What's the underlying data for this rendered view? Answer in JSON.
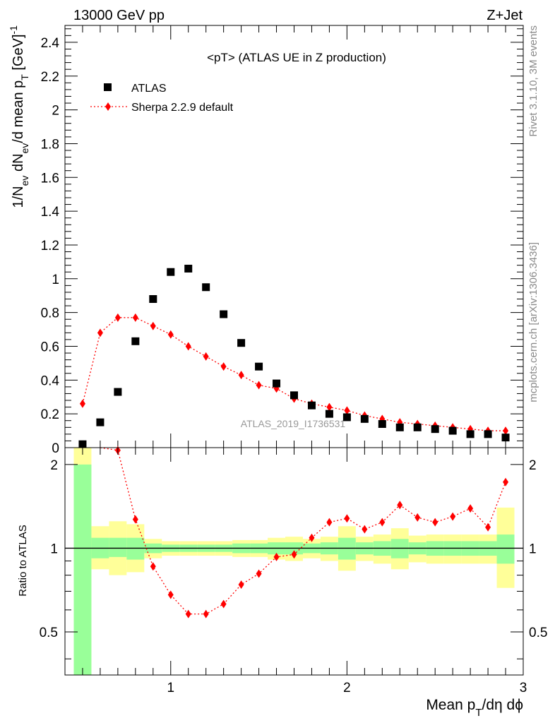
{
  "header": {
    "left": "13000 GeV pp",
    "right": "Z+Jet"
  },
  "side_labels": {
    "rivet": "Rivet 3.1.10,  3M events",
    "mcplots": "mcplots.cern.ch [arXiv:1306.3436]"
  },
  "colors": {
    "data": "#000000",
    "mc": "#ff0000",
    "band_inner": "#99ff99",
    "band_outer": "#ffff99"
  },
  "chart_data": [
    {
      "type": "scatter",
      "title": "<pT> (ATLAS UE in Z production)",
      "xlabel": "",
      "ylabel": "1/N_ev dN_ev/d mean p_T [GeV]^-1",
      "xlim": [
        0.4,
        3.0
      ],
      "ylim": [
        0,
        2.5
      ],
      "yticks": [
        0,
        0.2,
        0.4,
        0.6,
        0.8,
        1,
        1.2,
        1.4,
        1.6,
        1.8,
        2,
        2.2,
        2.4
      ],
      "ytick_labels": [
        "0",
        "0.2",
        "0.4",
        "0.6",
        "0.8",
        "1",
        "1.2",
        "1.4",
        "1.6",
        "1.8",
        "2",
        "2.2",
        "2.4"
      ],
      "watermark": "ATLAS_2019_I1736531",
      "legend_position": "top-left",
      "series": [
        {
          "name": "ATLAS",
          "marker": "square",
          "x": [
            0.5,
            0.6,
            0.7,
            0.8,
            0.9,
            1.0,
            1.1,
            1.2,
            1.3,
            1.4,
            1.5,
            1.6,
            1.7,
            1.8,
            1.9,
            2.0,
            2.1,
            2.2,
            2.3,
            2.4,
            2.5,
            2.6,
            2.7,
            2.8,
            2.9
          ],
          "y": [
            0.02,
            0.15,
            0.33,
            0.63,
            0.88,
            1.04,
            1.06,
            0.95,
            0.79,
            0.62,
            0.48,
            0.38,
            0.31,
            0.25,
            0.2,
            0.18,
            0.17,
            0.14,
            0.12,
            0.12,
            0.11,
            0.1,
            0.08,
            0.08,
            0.06
          ]
        },
        {
          "name": "Sherpa 2.2.9 default",
          "marker": "diamond",
          "line": "dotted",
          "x": [
            0.5,
            0.6,
            0.7,
            0.8,
            0.9,
            1.0,
            1.1,
            1.2,
            1.3,
            1.4,
            1.5,
            1.6,
            1.7,
            1.8,
            1.9,
            2.0,
            2.1,
            2.2,
            2.3,
            2.4,
            2.5,
            2.6,
            2.7,
            2.8,
            2.9
          ],
          "y": [
            0.26,
            0.68,
            0.77,
            0.77,
            0.72,
            0.67,
            0.6,
            0.54,
            0.48,
            0.43,
            0.37,
            0.35,
            0.29,
            0.26,
            0.24,
            0.22,
            0.19,
            0.17,
            0.15,
            0.14,
            0.13,
            0.12,
            0.11,
            0.1,
            0.1
          ]
        }
      ]
    },
    {
      "type": "line",
      "title": "",
      "xlabel": "Mean p_T/dη dϕ",
      "ylabel": "Ratio to ATLAS",
      "xlim": [
        0.4,
        3.0
      ],
      "ylim": [
        0.35,
        2.3
      ],
      "xticks": [
        1,
        2,
        3
      ],
      "xtick_labels": [
        "1",
        "2",
        "3"
      ],
      "yticks": [
        0.5,
        1,
        2
      ],
      "ytick_labels": [
        "0.5",
        "1",
        "2"
      ],
      "ylog": true,
      "reference_line": 1,
      "bands": {
        "bin_edges": [
          0.45,
          0.55,
          0.65,
          0.75,
          0.85,
          0.95,
          1.05,
          1.15,
          1.25,
          1.35,
          1.45,
          1.55,
          1.65,
          1.75,
          1.85,
          1.95,
          2.05,
          2.15,
          2.25,
          2.35,
          2.45,
          2.55,
          2.65,
          2.75,
          2.85,
          2.95
        ],
        "inner_low": [
          0.35,
          0.92,
          0.93,
          0.91,
          0.96,
          0.97,
          0.97,
          0.97,
          0.97,
          0.96,
          0.96,
          0.95,
          0.95,
          0.96,
          0.95,
          0.91,
          0.95,
          0.94,
          0.92,
          0.95,
          0.94,
          0.94,
          0.94,
          0.94,
          0.88
        ],
        "inner_high": [
          2.0,
          1.09,
          1.09,
          1.09,
          1.04,
          1.03,
          1.03,
          1.03,
          1.03,
          1.04,
          1.04,
          1.05,
          1.05,
          1.04,
          1.05,
          1.09,
          1.05,
          1.06,
          1.08,
          1.05,
          1.06,
          1.06,
          1.06,
          1.06,
          1.12
        ],
        "outer_low": [
          0.35,
          0.84,
          0.8,
          0.82,
          0.92,
          0.94,
          0.94,
          0.94,
          0.94,
          0.93,
          0.93,
          0.91,
          0.9,
          0.92,
          0.9,
          0.83,
          0.9,
          0.88,
          0.84,
          0.89,
          0.88,
          0.88,
          0.88,
          0.88,
          0.72
        ],
        "outer_high": [
          2.3,
          1.2,
          1.25,
          1.22,
          1.08,
          1.06,
          1.06,
          1.06,
          1.06,
          1.07,
          1.07,
          1.09,
          1.1,
          1.08,
          1.1,
          1.2,
          1.1,
          1.12,
          1.18,
          1.11,
          1.12,
          1.12,
          1.12,
          1.12,
          1.4
        ]
      },
      "series": [
        {
          "name": "Sherpa 2.2.9 default",
          "marker": "diamond",
          "line": "dotted",
          "x": [
            0.7,
            0.8,
            0.9,
            1.0,
            1.1,
            1.2,
            1.3,
            1.4,
            1.5,
            1.6,
            1.7,
            1.8,
            1.9,
            2.0,
            2.1,
            2.2,
            2.3,
            2.4,
            2.5,
            2.6,
            2.7,
            2.8,
            2.9
          ],
          "y": [
            2.25,
            1.27,
            0.86,
            0.68,
            0.58,
            0.58,
            0.63,
            0.74,
            0.81,
            0.93,
            0.95,
            1.09,
            1.24,
            1.28,
            1.17,
            1.24,
            1.43,
            1.29,
            1.24,
            1.3,
            1.39,
            1.19,
            1.73
          ]
        }
      ]
    }
  ]
}
